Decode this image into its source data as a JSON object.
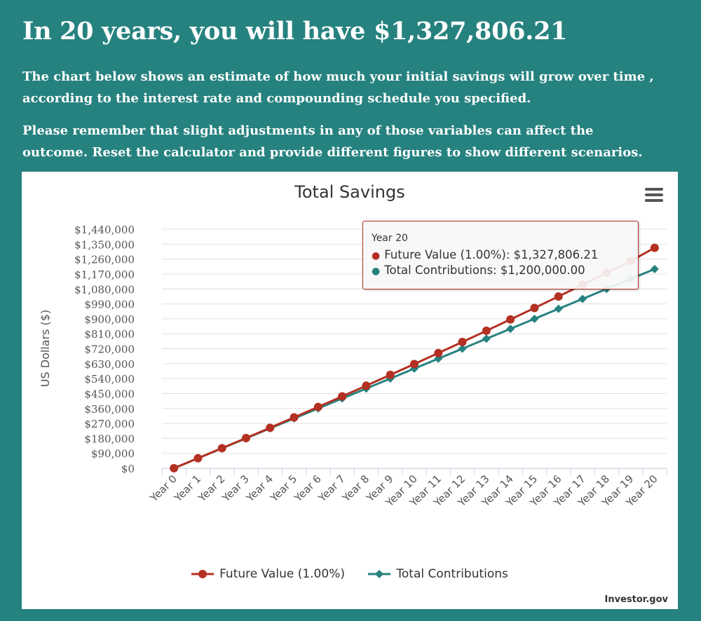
{
  "header": {
    "headline": "In 20 years, you will have $1,327,806.21",
    "paragraph1_line1": "The chart below shows an estimate of how much your initial savings will grow over time ,",
    "paragraph1_line2": "according to the interest rate and compounding schedule you specified.",
    "paragraph2_line1": "Please remember that slight adjustments in any of those variables can affect the",
    "paragraph2_line2": "outcome. Reset the calculator and provide different figures to show different scenarios."
  },
  "chart_data": {
    "type": "line",
    "title": "Total Savings",
    "xlabel": "",
    "ylabel": "US Dollars ($)",
    "ylim": [
      0,
      1440000
    ],
    "yticks": [
      "$0",
      "$90,000",
      "$180,000",
      "$270,000",
      "$360,000",
      "$450,000",
      "$540,000",
      "$630,000",
      "$720,000",
      "$810,000",
      "$900,000",
      "$990,000",
      "$1,080,000",
      "$1,170,000",
      "$1,260,000",
      "$1,350,000",
      "$1,440,000"
    ],
    "categories": [
      "Year 0",
      "Year 1",
      "Year 2",
      "Year 3",
      "Year 4",
      "Year 5",
      "Year 6",
      "Year 7",
      "Year 8",
      "Year 9",
      "Year 10",
      "Year 11",
      "Year 12",
      "Year 13",
      "Year 14",
      "Year 15",
      "Year 16",
      "Year 17",
      "Year 18",
      "Year 19",
      "Year 20"
    ],
    "series": [
      {
        "name": "Future Value (1.00%)",
        "color": "#b33022",
        "marker": "circle",
        "values": [
          0,
          60000,
          120600,
          181800,
          243600,
          306000,
          369000,
          432700,
          497000,
          562000,
          627500,
          693800,
          760600,
          828000,
          896300,
          965200,
          1034800,
          1105100,
          1176100,
          1247900,
          1327806.21
        ]
      },
      {
        "name": "Total Contributions",
        "color": "#26827f",
        "marker": "diamond",
        "values": [
          0,
          60000,
          120000,
          180000,
          240000,
          300000,
          360000,
          420000,
          480000,
          540000,
          600000,
          660000,
          720000,
          780000,
          840000,
          900000,
          960000,
          1020000,
          1080000,
          1140000,
          1200000
        ]
      }
    ],
    "tooltip": {
      "title": "Year 20",
      "rows": [
        {
          "label": "Future Value (1.00%):",
          "value": "$1,327,806.21"
        },
        {
          "label": "Total Contributions:",
          "value": "$1,200,000.00"
        }
      ]
    },
    "legend_position": "bottom",
    "grid": true,
    "credit": "Investor.gov"
  },
  "icons": {
    "menu": "hamburger-menu-icon"
  }
}
